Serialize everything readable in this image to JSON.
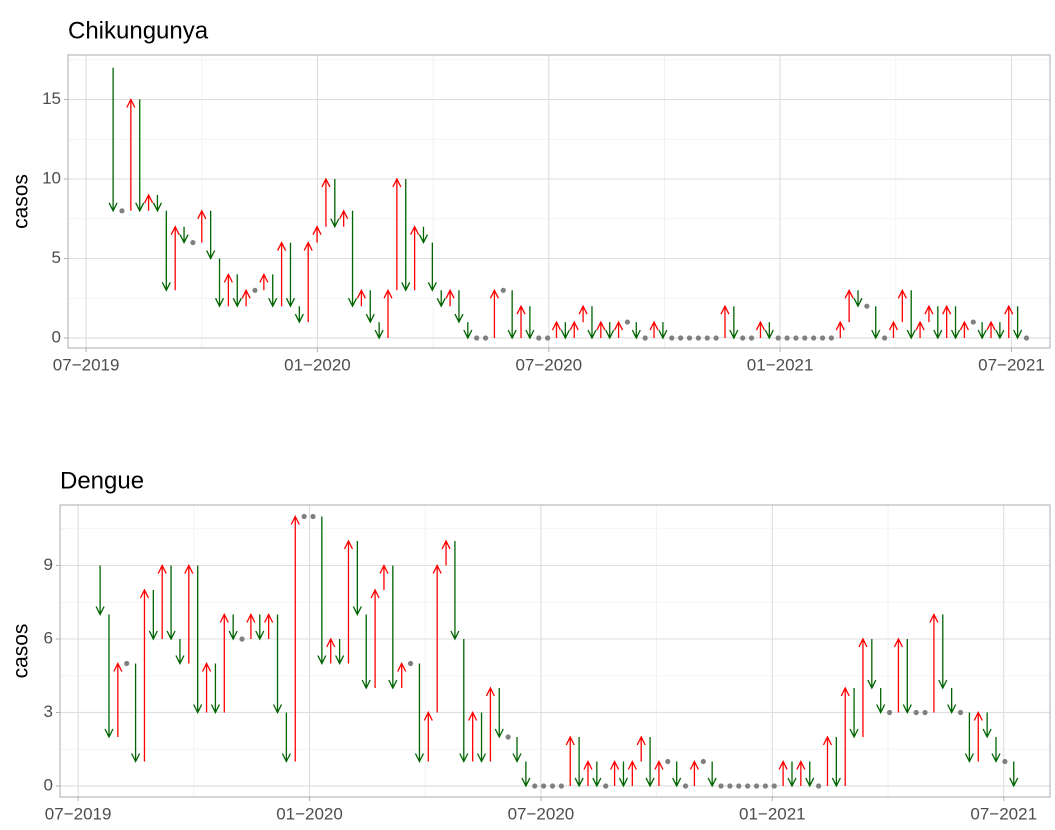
{
  "chart_data": [
    {
      "type": "arrow",
      "title": "Chikungunya",
      "y_label": "casos",
      "up_color": "#ff0000",
      "down_color": "#006400",
      "same_color": "#808080",
      "grid": true,
      "xlim": [
        -0.47,
        25
      ],
      "xticks": [
        {
          "value": 0,
          "label": "07−2019"
        },
        {
          "value": 6,
          "label": "01−2020"
        },
        {
          "value": 12,
          "label": "07−2020"
        },
        {
          "value": 18,
          "label": "01−2021"
        },
        {
          "value": 24,
          "label": "07−2021"
        }
      ],
      "ylim": [
        -0.63,
        17.8
      ],
      "yticks": [
        0,
        5,
        10,
        15
      ],
      "x": [
        0.7,
        0.93,
        1.16,
        1.39,
        1.62,
        1.85,
        2.08,
        2.31,
        2.54,
        2.77,
        3,
        3.23,
        3.46,
        3.69,
        3.92,
        4.15,
        4.38,
        4.61,
        4.84,
        5.07,
        5.3,
        5.53,
        5.76,
        5.99,
        6.22,
        6.45,
        6.68,
        6.91,
        7.14,
        7.37,
        7.6,
        7.83,
        8.06,
        8.29,
        8.52,
        8.75,
        8.98,
        9.21,
        9.44,
        9.67,
        9.9,
        10.13,
        10.36,
        10.59,
        10.82,
        11.05,
        11.28,
        11.51,
        11.74,
        11.97,
        12.2,
        12.43,
        12.66,
        12.89,
        13.12,
        13.35,
        13.58,
        13.81,
        14.04,
        14.27,
        14.5,
        14.73,
        14.96,
        15.19,
        15.42,
        15.65,
        15.88,
        16.11,
        16.34,
        16.57,
        16.8,
        17.03,
        17.26,
        17.49,
        17.72,
        17.95,
        18.18,
        18.41,
        18.64,
        18.87,
        19.1,
        19.33,
        19.56,
        19.79,
        20.02,
        20.25,
        20.48,
        20.71,
        20.94,
        21.17,
        21.4,
        21.63,
        21.86,
        22.09,
        22.32,
        22.55,
        22.78,
        23.01,
        23.24,
        23.47,
        23.7,
        23.93,
        24.16,
        24.39
      ],
      "values_from": [
        17,
        8,
        8,
        15,
        8,
        9,
        8,
        3,
        7,
        6,
        6,
        8,
        5,
        2,
        4,
        2,
        3,
        3,
        4,
        2,
        6,
        2,
        1,
        6,
        7,
        10,
        7,
        8,
        2,
        3,
        1,
        0,
        3,
        10,
        3,
        7,
        6,
        3,
        2,
        3,
        1,
        0,
        0,
        0,
        3,
        3,
        0,
        2,
        0,
        0,
        0,
        1,
        0,
        1,
        2,
        0,
        1,
        0,
        1,
        1,
        0,
        0,
        1,
        0,
        0,
        0,
        0,
        0,
        0,
        0,
        2,
        0,
        0,
        0,
        1,
        0,
        0,
        0,
        0,
        0,
        0,
        0,
        0,
        1,
        3,
        2,
        2,
        0,
        0,
        1,
        3,
        0,
        1,
        2,
        0,
        2,
        0,
        1,
        1,
        0,
        1,
        0,
        2,
        0
      ],
      "values": [
        8,
        8,
        15,
        8,
        9,
        8,
        3,
        7,
        6,
        6,
        8,
        5,
        2,
        4,
        2,
        3,
        3,
        4,
        2,
        6,
        2,
        1,
        6,
        7,
        10,
        7,
        8,
        2,
        3,
        1,
        0,
        3,
        10,
        3,
        7,
        6,
        3,
        2,
        3,
        1,
        0,
        0,
        0,
        3,
        3,
        0,
        2,
        0,
        0,
        0,
        1,
        0,
        1,
        2,
        0,
        1,
        0,
        1,
        1,
        0,
        0,
        1,
        0,
        0,
        0,
        0,
        0,
        0,
        0,
        2,
        0,
        0,
        0,
        1,
        0,
        0,
        0,
        0,
        0,
        0,
        0,
        0,
        1,
        3,
        2,
        2,
        0,
        0,
        1,
        3,
        0,
        1,
        2,
        0,
        2,
        0,
        1,
        1,
        0,
        1,
        0,
        2,
        0,
        0
      ]
    },
    {
      "type": "arrow",
      "title": "Dengue",
      "y_label": "casos",
      "up_color": "#ff0000",
      "down_color": "#006400",
      "same_color": "#808080",
      "grid": true,
      "xlim": [
        -0.47,
        25.2
      ],
      "xticks": [
        {
          "value": 0,
          "label": "07−2019"
        },
        {
          "value": 6,
          "label": "01−2020"
        },
        {
          "value": 12,
          "label": "07−2020"
        },
        {
          "value": 18,
          "label": "01−2021"
        },
        {
          "value": 24,
          "label": "07−2021"
        }
      ],
      "ylim": [
        -0.45,
        11.47
      ],
      "yticks": [
        0,
        3,
        6,
        9
      ],
      "x": [
        0.57,
        0.8,
        1.03,
        1.26,
        1.49,
        1.72,
        1.95,
        2.18,
        2.41,
        2.64,
        2.87,
        3.1,
        3.33,
        3.56,
        3.79,
        4.02,
        4.25,
        4.48,
        4.71,
        4.94,
        5.17,
        5.4,
        5.63,
        5.86,
        6.09,
        6.32,
        6.55,
        6.78,
        7.01,
        7.24,
        7.47,
        7.7,
        7.93,
        8.16,
        8.39,
        8.62,
        8.85,
        9.08,
        9.31,
        9.54,
        9.77,
        10,
        10.23,
        10.46,
        10.69,
        10.92,
        11.15,
        11.38,
        11.61,
        11.84,
        12.07,
        12.3,
        12.53,
        12.76,
        12.99,
        13.22,
        13.45,
        13.68,
        13.91,
        14.14,
        14.37,
        14.6,
        14.83,
        15.06,
        15.29,
        15.52,
        15.75,
        15.98,
        16.21,
        16.44,
        16.67,
        16.9,
        17.13,
        17.36,
        17.59,
        17.82,
        18.05,
        18.28,
        18.51,
        18.74,
        18.97,
        19.2,
        19.43,
        19.66,
        19.89,
        20.12,
        20.35,
        20.58,
        20.81,
        21.04,
        21.27,
        21.5,
        21.73,
        21.96,
        22.19,
        22.42,
        22.65,
        22.88,
        23.11,
        23.34,
        23.57,
        23.8,
        24.03,
        24.26
      ],
      "values_from": [
        9,
        7,
        2,
        5,
        5,
        1,
        8,
        6,
        9,
        6,
        5,
        9,
        3,
        5,
        3,
        7,
        6,
        6,
        7,
        6,
        7,
        3,
        1,
        11,
        11,
        11,
        5,
        6,
        5,
        10,
        7,
        4,
        8,
        9,
        4,
        5,
        5,
        1,
        3,
        9,
        10,
        6,
        1,
        3,
        1,
        4,
        2,
        2,
        1,
        0,
        0,
        0,
        0,
        0,
        2,
        0,
        1,
        0,
        0,
        1,
        0,
        1,
        2,
        0,
        1,
        1,
        0,
        0,
        1,
        1,
        0,
        0,
        0,
        0,
        0,
        0,
        0,
        0,
        1,
        0,
        1,
        0,
        0,
        2,
        0,
        4,
        2,
        6,
        4,
        3,
        3,
        6,
        3,
        3,
        3,
        7,
        4,
        3,
        3,
        1,
        3,
        2,
        1,
        1
      ],
      "values": [
        7,
        2,
        5,
        5,
        1,
        8,
        6,
        9,
        6,
        5,
        9,
        3,
        5,
        3,
        7,
        6,
        6,
        7,
        6,
        7,
        3,
        1,
        11,
        11,
        11,
        5,
        6,
        5,
        10,
        7,
        4,
        8,
        9,
        4,
        5,
        5,
        1,
        3,
        9,
        10,
        6,
        1,
        3,
        1,
        4,
        2,
        2,
        1,
        0,
        0,
        0,
        0,
        0,
        2,
        0,
        1,
        0,
        0,
        1,
        0,
        1,
        2,
        0,
        1,
        1,
        0,
        0,
        1,
        1,
        0,
        0,
        0,
        0,
        0,
        0,
        0,
        0,
        1,
        0,
        1,
        0,
        0,
        2,
        0,
        4,
        2,
        6,
        4,
        3,
        3,
        6,
        3,
        3,
        3,
        7,
        4,
        3,
        3,
        1,
        3,
        2,
        1,
        1,
        0
      ]
    }
  ]
}
